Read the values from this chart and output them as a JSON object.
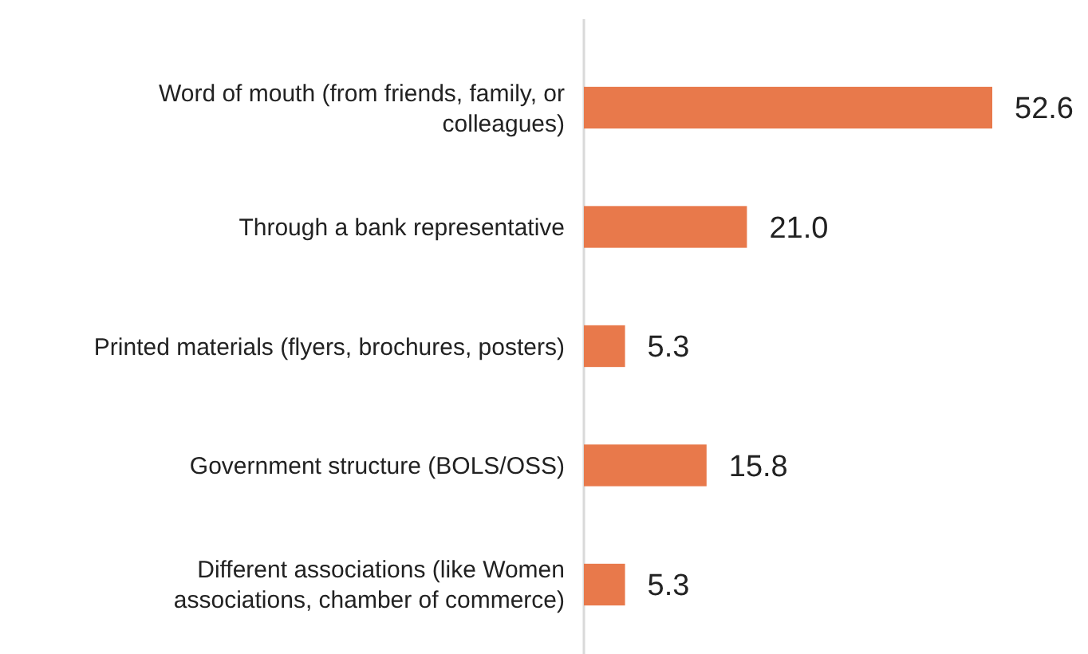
{
  "chart_data": {
    "type": "bar",
    "orientation": "horizontal",
    "categories": [
      "Word of mouth (from friends, family, or colleagues)",
      "Through a bank representative",
      "Printed materials (flyers, brochures, posters)",
      "Government structure (BOLS/OSS)",
      "Different associations (like Women associations, chamber of commerce)"
    ],
    "values": [
      52.6,
      21.0,
      5.3,
      15.8,
      5.3
    ],
    "color": "#e8794b",
    "data_labels": true,
    "value_labels": [
      "52.6",
      "21.0",
      "5.3",
      "15.8",
      "5.3"
    ]
  }
}
